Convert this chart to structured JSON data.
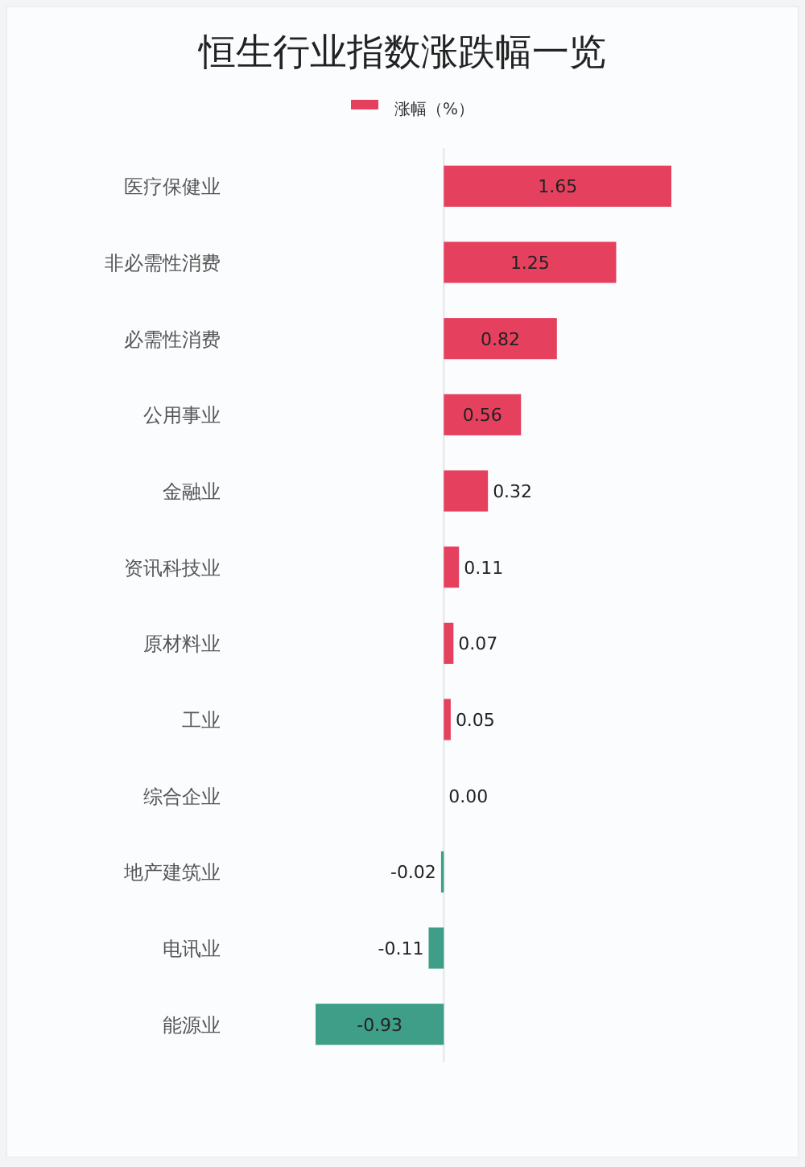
{
  "chart_data": {
    "type": "bar",
    "orientation": "horizontal",
    "title": "恒生行业指数涨跌幅一览",
    "legend": "top",
    "categories": [
      "医疗保健业",
      "非必需性消费",
      "必需性消费",
      "公用事业",
      "金融业",
      "资讯科技业",
      "原材料业",
      "工业",
      "综合企业",
      "地产建筑业",
      "电讯业",
      "能源业"
    ],
    "series": [
      {
        "name": "涨幅（%）",
        "color": "#e5415f",
        "colors": [
          "#e5415f",
          "#e5415f",
          "#e5415f",
          "#e5415f",
          "#e5415f",
          "#e5415f",
          "#e5415f",
          "#e5415f",
          "#e5415f",
          "#3e9e88",
          "#3e9e88",
          "#3e9e88"
        ],
        "values": [
          1.65,
          1.25,
          0.82,
          0.56,
          0.32,
          0.11,
          0.07,
          0.05,
          0.0,
          -0.02,
          -0.11,
          -0.93
        ],
        "value_labels": [
          "1.65",
          "1.25",
          "0.82",
          "0.56",
          "0.32",
          "0.11",
          "0.07",
          "0.05",
          "0.00",
          "-0.02",
          "-0.11",
          "-0.93"
        ]
      }
    ]
  }
}
